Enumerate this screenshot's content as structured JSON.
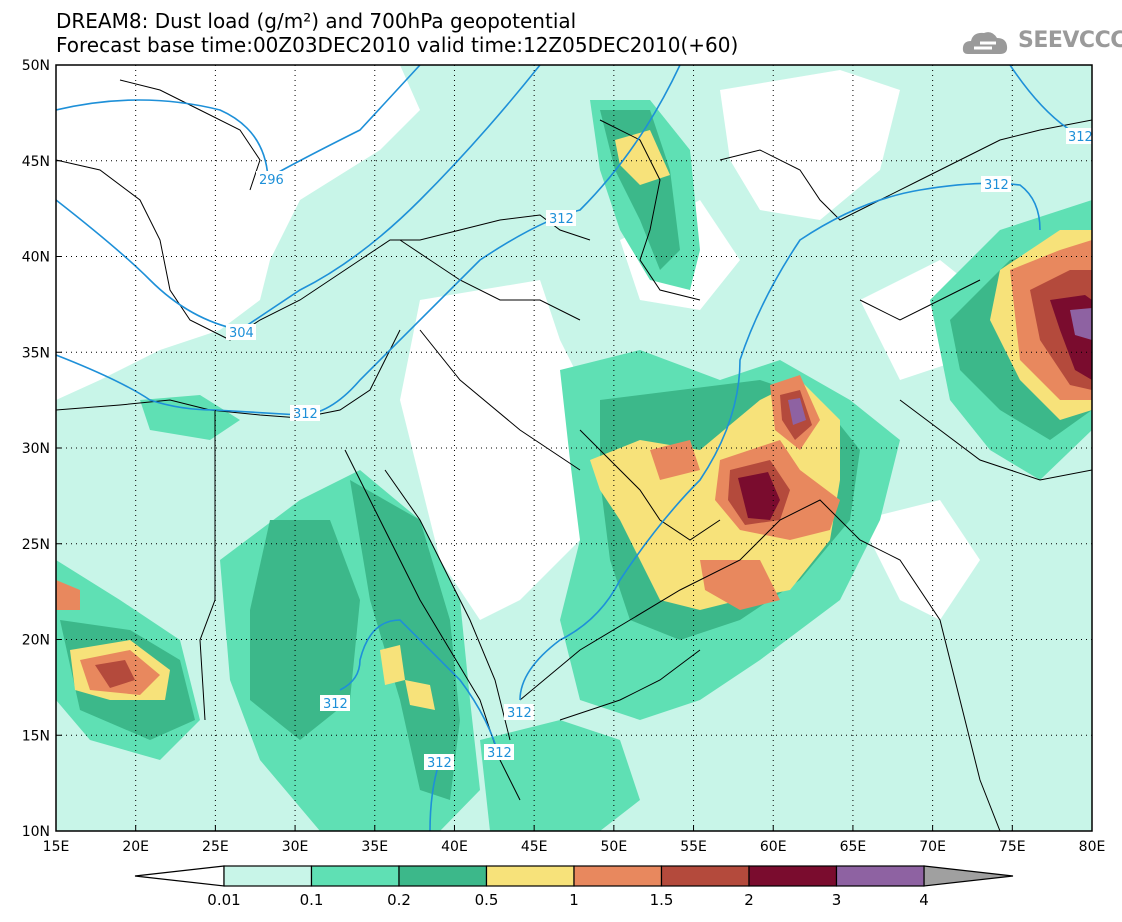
{
  "title_line1": "DREAM8: Dust load (g/m²) and 700hPa geopotential",
  "title_line2": "Forecast base time:00Z03DEC2010 valid time:12Z05DEC2010(+60)",
  "logo_text": "SEEVCCC",
  "map": {
    "lon_range": [
      15,
      80
    ],
    "lat_range": [
      10,
      50
    ],
    "lon_ticks": [
      "15E",
      "20E",
      "25E",
      "30E",
      "35E",
      "40E",
      "45E",
      "50E",
      "55E",
      "60E",
      "65E",
      "70E",
      "75E",
      "80E"
    ],
    "lat_ticks": [
      "50N",
      "45N",
      "40N",
      "35N",
      "30N",
      "25N",
      "20N",
      "15N",
      "10N"
    ],
    "contour_labels": [
      "296",
      "304",
      "312",
      "312",
      "312",
      "312",
      "312",
      "312",
      "312",
      "312"
    ]
  },
  "colorbar": {
    "labels": [
      "0.01",
      "0.1",
      "0.2",
      "0.5",
      "1",
      "1.5",
      "2",
      "3",
      "4"
    ],
    "colors": [
      "#c8f5e8",
      "#5fe0b4",
      "#3cb88a",
      "#f7e27a",
      "#e8885e",
      "#b44a3c",
      "#7a0c2e",
      "#8e62a2",
      "#a0a0a0"
    ]
  }
}
